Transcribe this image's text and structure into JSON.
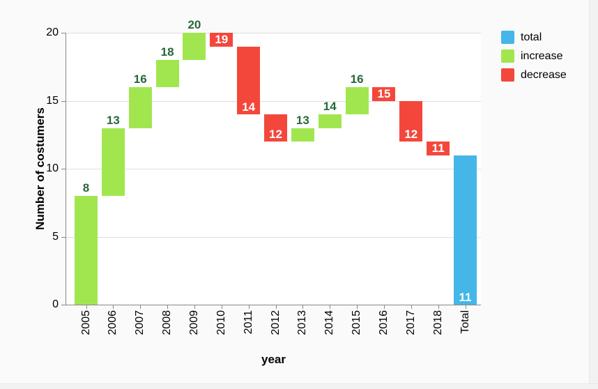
{
  "chart_data": {
    "type": "waterfall",
    "title": "",
    "xlabel": "year",
    "ylabel": "Number of costumers",
    "ylim": [
      0,
      20
    ],
    "yticks": [
      0,
      5,
      10,
      15,
      20
    ],
    "grid": true,
    "categories": [
      "2005",
      "2006",
      "2007",
      "2008",
      "2009",
      "2010",
      "2011",
      "2012",
      "2013",
      "2014",
      "2015",
      "2016",
      "2017",
      "2018",
      "Total"
    ],
    "cumulative": [
      8,
      13,
      16,
      18,
      20,
      19,
      14,
      12,
      13,
      14,
      16,
      15,
      12,
      11,
      11
    ],
    "steps": [
      {
        "category": "2005",
        "start": 0,
        "end": 8,
        "kind": "increase",
        "label": "8"
      },
      {
        "category": "2006",
        "start": 8,
        "end": 13,
        "kind": "increase",
        "label": "13"
      },
      {
        "category": "2007",
        "start": 13,
        "end": 16,
        "kind": "increase",
        "label": "16"
      },
      {
        "category": "2008",
        "start": 16,
        "end": 18,
        "kind": "increase",
        "label": "18"
      },
      {
        "category": "2009",
        "start": 18,
        "end": 20,
        "kind": "increase",
        "label": "20"
      },
      {
        "category": "2010",
        "start": 20,
        "end": 19,
        "kind": "decrease",
        "label": "19"
      },
      {
        "category": "2011",
        "start": 19,
        "end": 14,
        "kind": "decrease",
        "label": "14"
      },
      {
        "category": "2012",
        "start": 14,
        "end": 12,
        "kind": "decrease",
        "label": "12"
      },
      {
        "category": "2013",
        "start": 12,
        "end": 13,
        "kind": "increase",
        "label": "13"
      },
      {
        "category": "2014",
        "start": 13,
        "end": 14,
        "kind": "increase",
        "label": "14"
      },
      {
        "category": "2015",
        "start": 14,
        "end": 16,
        "kind": "increase",
        "label": "16"
      },
      {
        "category": "2016",
        "start": 16,
        "end": 15,
        "kind": "decrease",
        "label": "15"
      },
      {
        "category": "2017",
        "start": 15,
        "end": 12,
        "kind": "decrease",
        "label": "12"
      },
      {
        "category": "2018",
        "start": 12,
        "end": 11,
        "kind": "decrease",
        "label": "11"
      },
      {
        "category": "Total",
        "start": 0,
        "end": 11,
        "kind": "total",
        "label": "11"
      }
    ],
    "legend": {
      "position": "top-right",
      "items": [
        {
          "label": "total",
          "kind": "total",
          "color": "#45B6E8"
        },
        {
          "label": "increase",
          "kind": "increase",
          "color": "#A2E64F"
        },
        {
          "label": "decrease",
          "kind": "decrease",
          "color": "#F4473C"
        }
      ]
    },
    "colors": {
      "total": "#45B6E8",
      "increase": "#A2E64F",
      "decrease": "#F4473C",
      "increase_value_label": "#27673A",
      "inside_value_label": "#FFFFFF",
      "grid": "#DEDEDE",
      "axis": "#888888"
    }
  }
}
